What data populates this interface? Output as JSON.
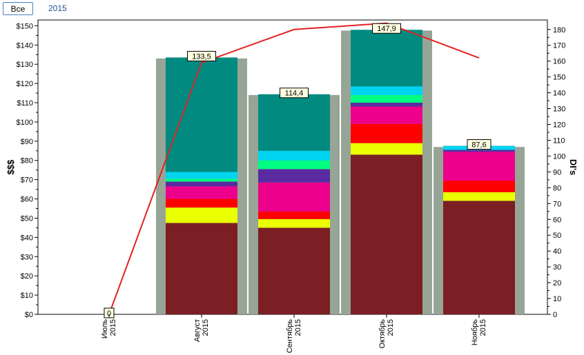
{
  "tabs": {
    "all_label": "Все",
    "year_label": "2015"
  },
  "chart_data": {
    "type": "bar",
    "title": "",
    "ylabel_left": "$$$",
    "ylabel_right": "DI's",
    "ylim_left": [
      0,
      153
    ],
    "ylim_right": [
      0,
      186
    ],
    "yticks_left": [
      "$0",
      "$10",
      "$20",
      "$30",
      "$40",
      "$50",
      "$60",
      "$70",
      "$80",
      "$90",
      "$100",
      "$110",
      "$120",
      "$130",
      "$140",
      "$150"
    ],
    "yticks_right": [
      "0",
      "10",
      "20",
      "30",
      "40",
      "50",
      "60",
      "70",
      "80",
      "90",
      "100",
      "110",
      "120",
      "130",
      "140",
      "150",
      "160",
      "170",
      "180"
    ],
    "categories": [
      {
        "month": "Июль",
        "year": "2015"
      },
      {
        "month": "Август",
        "year": "2015"
      },
      {
        "month": "Сентябрь",
        "year": "2015"
      },
      {
        "month": "Октябрь",
        "year": "2015"
      },
      {
        "month": "Ноябрь",
        "year": "2015"
      }
    ],
    "totals": [
      0,
      133.5,
      114.4,
      147.9,
      87.6
    ],
    "total_labels": [
      "0",
      "133,5",
      "114,4",
      "147,9",
      "87,6"
    ],
    "grey_backdrop": [
      0,
      133,
      114,
      147.5,
      87
    ],
    "series": [
      {
        "color": "#7b1f24",
        "values": [
          0,
          47.5,
          45,
          83,
          59
        ]
      },
      {
        "color": "#eaff00",
        "values": [
          0,
          8,
          4.5,
          6,
          4.5
        ]
      },
      {
        "color": "#ff0000",
        "values": [
          0,
          4.5,
          4,
          10,
          6
        ]
      },
      {
        "color": "#ec008c",
        "values": [
          0,
          6.5,
          15,
          9,
          15
        ]
      },
      {
        "color": "#5a2aa0",
        "values": [
          0,
          2.5,
          7,
          2,
          1
        ]
      },
      {
        "color": "#00ff80",
        "values": [
          0,
          1.5,
          4.5,
          4,
          0
        ]
      },
      {
        "color": "#00d4f0",
        "values": [
          0,
          3.5,
          5,
          4.5,
          2
        ]
      },
      {
        "color": "#008a80",
        "values": [
          0,
          59.5,
          29.4,
          29.4,
          0.1
        ]
      }
    ],
    "line": {
      "color": "#e52020",
      "axis": "right",
      "values": [
        0,
        159,
        180,
        184,
        162
      ]
    },
    "grid": false
  }
}
